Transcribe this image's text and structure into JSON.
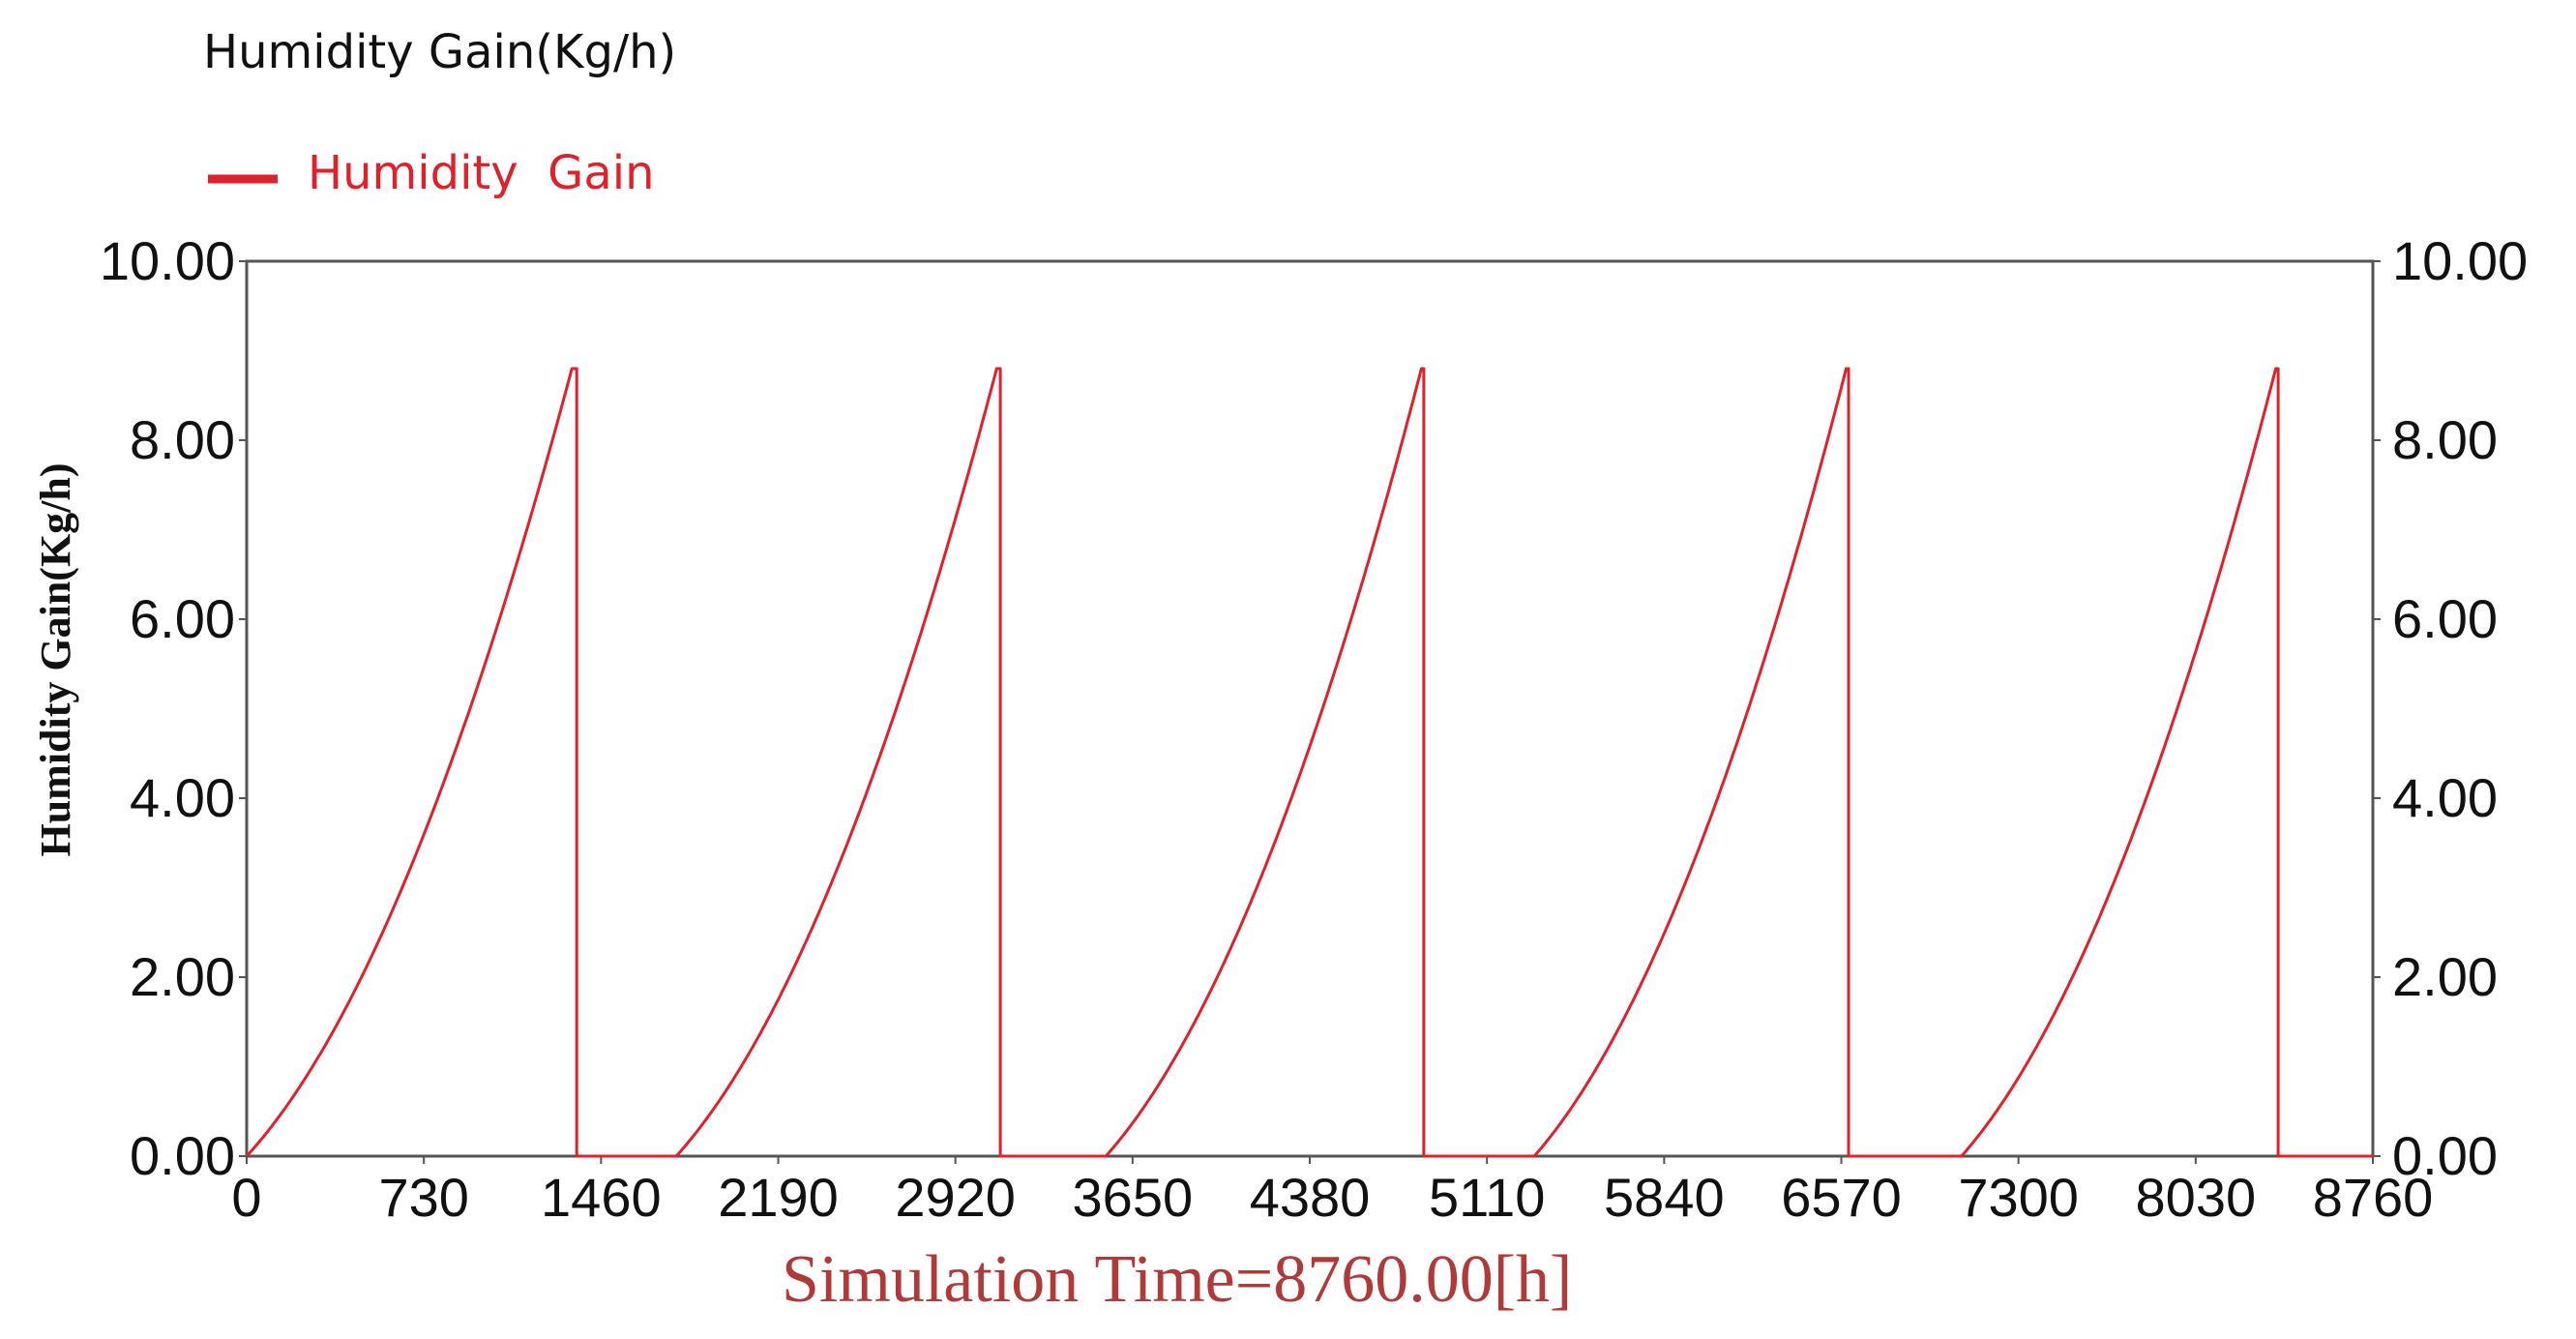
{
  "chart_data": {
    "type": "line",
    "title": "Humidity Gain(Kg/h)",
    "ylabel": "Humidity Gain(Kg/h)",
    "xlabel": "",
    "footer": "Simulation Time=8760.00[h]",
    "xlim": [
      0,
      8760
    ],
    "ylim": [
      0,
      10
    ],
    "x_ticks": [
      "0",
      "730",
      "1460",
      "2190",
      "2920",
      "3650",
      "4380",
      "5110",
      "5840",
      "6570",
      "7300",
      "8030",
      "8760"
    ],
    "y_ticks": [
      "0.00",
      "2.00",
      "4.00",
      "6.00",
      "8.00",
      "10.00"
    ],
    "y_ticks_right": [
      "0.00",
      "2.00",
      "4.00",
      "6.00",
      "8.00",
      "10.00"
    ],
    "legend_position": "top-left",
    "grid": false,
    "series": [
      {
        "name": "Humidity  Gain",
        "color": "#e0202a",
        "cycles": [
          {
            "start": 0,
            "peak_x": 1340,
            "end": 1360,
            "peak": 8.8
          },
          {
            "start": 1770,
            "peak_x": 3090,
            "end": 3105,
            "peak": 8.8
          },
          {
            "start": 3540,
            "peak_x": 4840,
            "end": 4850,
            "peak": 8.8
          },
          {
            "start": 5305,
            "peak_x": 6590,
            "end": 6600,
            "peak": 8.8
          },
          {
            "start": 7065,
            "peak_x": 8360,
            "end": 8370,
            "peak": 8.8
          }
        ]
      }
    ]
  },
  "colors": {
    "series": "#e0202a",
    "footer": "#b03a3a",
    "axis": "#555555"
  }
}
